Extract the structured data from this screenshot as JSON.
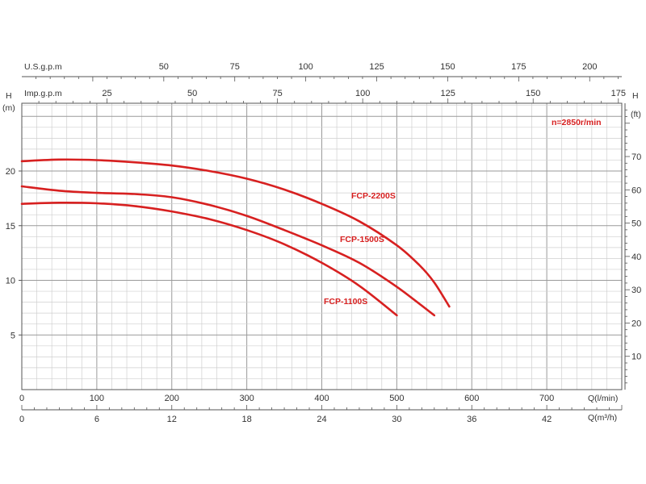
{
  "chart_data": {
    "type": "line",
    "speed_note": "n=2850r/min",
    "y_left": {
      "label_top": "H",
      "label_unit": "(m)",
      "ticks": [
        5,
        10,
        15,
        20
      ],
      "range": [
        0,
        26.2
      ]
    },
    "y_right": {
      "label_top": "H",
      "label_unit": "(ft)",
      "ticks": [
        10,
        20,
        30,
        40,
        50,
        60,
        70
      ],
      "range": [
        0,
        86
      ]
    },
    "x_lmin": {
      "label": "Q(l/min)",
      "ticks": [
        100,
        200,
        300,
        400,
        500,
        600,
        700
      ],
      "range": [
        0,
        800
      ]
    },
    "x_m3h": {
      "label": "Q(m³/h)",
      "ticks": [
        0,
        6,
        12,
        18,
        24,
        30,
        36,
        42
      ],
      "range": [
        0,
        48
      ]
    },
    "x_usgpm": {
      "label": "U.S.g.p.m",
      "ticks": [
        50,
        75,
        100,
        125,
        150,
        175,
        200
      ],
      "range": [
        0,
        211.3
      ]
    },
    "x_impgpm": {
      "label": "Imp.g.p.m",
      "ticks": [
        25,
        50,
        75,
        100,
        125,
        150,
        175
      ],
      "range": [
        0,
        176
      ]
    },
    "x_unit": "l/min",
    "y_unit": "m",
    "series": [
      {
        "name": "FCP-2200S",
        "color": "#d72020",
        "x": [
          0,
          50,
          100,
          150,
          200,
          250,
          300,
          350,
          400,
          450,
          500,
          530,
          550,
          570
        ],
        "y": [
          20.9,
          21.05,
          21.0,
          20.8,
          20.5,
          20.0,
          19.3,
          18.3,
          17.0,
          15.4,
          13.2,
          11.4,
          9.8,
          7.6
        ]
      },
      {
        "name": "FCP-1500S",
        "color": "#d72020",
        "x": [
          0,
          50,
          100,
          150,
          200,
          250,
          300,
          350,
          400,
          450,
          500,
          550
        ],
        "y": [
          18.6,
          18.2,
          18.0,
          17.9,
          17.6,
          16.9,
          15.9,
          14.6,
          13.2,
          11.6,
          9.4,
          6.8
        ]
      },
      {
        "name": "FCP-1100S",
        "color": "#d72020",
        "x": [
          0,
          50,
          100,
          150,
          200,
          250,
          300,
          350,
          400,
          450,
          500
        ],
        "y": [
          17.0,
          17.1,
          17.05,
          16.8,
          16.3,
          15.6,
          14.6,
          13.3,
          11.6,
          9.5,
          6.8
        ]
      }
    ]
  }
}
